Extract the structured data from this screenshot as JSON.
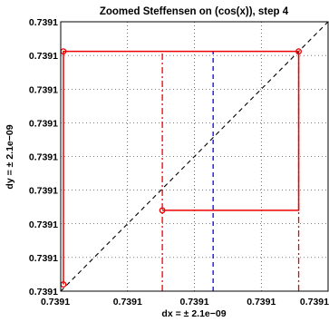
{
  "chart_data": {
    "type": "line",
    "title": "Zoomed Steffensen on (cos(x)), step 4",
    "xlabel": "dx = ± 2.1e−09",
    "ylabel": "dy = ± 2.1e−09",
    "x_tick_labels": [
      "0.7391",
      "0.7391",
      "0.7391",
      "0.7391",
      "0.7391"
    ],
    "y_tick_labels": [
      "0.7391",
      "0.7391",
      "0.7391",
      "0.7391",
      "0.7391",
      "0.7391",
      "0.7391",
      "0.7391",
      "0.7391"
    ],
    "grid": true,
    "xlim": [
      -1,
      1
    ],
    "ylim": [
      -1,
      1
    ],
    "series": [
      {
        "role": "identity-line",
        "color": "#000000",
        "dash": "dashed",
        "points": [
          [
            -1,
            -1
          ],
          [
            1,
            1
          ]
        ]
      },
      {
        "role": "iteration-box",
        "color": "#ee0000",
        "dash": "solid",
        "points": [
          [
            -0.98,
            -0.95
          ],
          [
            -0.98,
            0.78
          ],
          [
            0.78,
            0.78
          ],
          [
            0.78,
            -0.4
          ],
          [
            -0.24,
            -0.4
          ]
        ]
      },
      {
        "role": "markers",
        "color": "#ee0000",
        "points": [
          [
            -0.98,
            0.78
          ],
          [
            0.78,
            0.78
          ],
          [
            -0.24,
            -0.4
          ],
          [
            -0.98,
            -0.95
          ]
        ]
      }
    ],
    "vertical_lines": [
      {
        "x": -0.24,
        "y_range": [
          -1,
          0.78
        ],
        "color": "#ee0000",
        "dash": "dashdot"
      },
      {
        "x": 0.14,
        "y_range": [
          -1,
          0.78
        ],
        "color": "#0000ee",
        "dash": "dashed"
      },
      {
        "x": 0.78,
        "y_range": [
          -1,
          0.78
        ],
        "color": "#ee0000",
        "dash": "dashdot"
      }
    ]
  }
}
